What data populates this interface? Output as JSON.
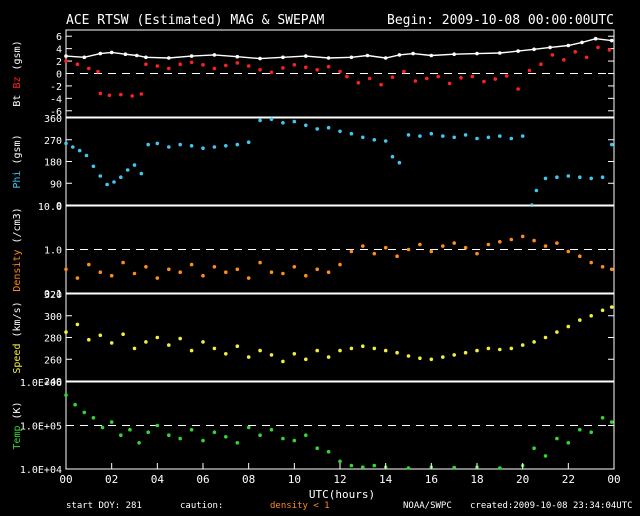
{
  "header": {
    "title": "ACE RTSW (Estimated) MAG & SWEPAM",
    "begin": "Begin: 2009-10-08 00:00:00UTC"
  },
  "footer": {
    "start_doy": "start DOY: 281",
    "caution": "caution:",
    "density_note": "density < 1",
    "agency": "NOAA/SWPC",
    "created": "created:2009-10-08 23:34:04UTC"
  },
  "colors": {
    "background": "#000000",
    "axes": "#ffffff",
    "bt": "#ffffff",
    "bz": "#ff2020",
    "phi": "#3ec8f0",
    "density": "#ff8c1a",
    "speed": "#f2ee3a",
    "temp": "#33d633"
  },
  "chart_data": {
    "type": "scatter",
    "xlabel": "UTC(hours)",
    "x_ticks": [
      "00",
      "02",
      "04",
      "06",
      "08",
      "10",
      "12",
      "14",
      "16",
      "18",
      "20",
      "22",
      "00"
    ],
    "xlim": [
      0,
      24
    ],
    "panels": [
      {
        "id": "mag",
        "ylabel_parts": [
          {
            "text": "Bt",
            "color": "#ffffff"
          },
          {
            "text": " Bz",
            "color": "#ff2020"
          },
          {
            "text": " (gsm)",
            "color": "#ffffff"
          }
        ],
        "ylim": [
          -7,
          7
        ],
        "scale": "linear",
        "y_ticks": [
          {
            "v": 6,
            "l": "6"
          },
          {
            "v": 4,
            "l": "4"
          },
          {
            "v": 2,
            "l": "2"
          },
          {
            "v": 0,
            "l": "0"
          },
          {
            "v": -2,
            "l": "-2"
          },
          {
            "v": -4,
            "l": "-4"
          },
          {
            "v": -6,
            "l": "-6"
          }
        ],
        "dashed": [
          0
        ],
        "series": [
          {
            "name": "Bt",
            "color": "#ffffff",
            "mode": "line",
            "x": [
              0.0,
              0.8,
              1.5,
              2.0,
              2.6,
              3.1,
              3.5,
              4.5,
              5.5,
              6.5,
              7.5,
              8.5,
              9.5,
              10.5,
              11.5,
              12.5,
              13.2,
              14.0,
              14.6,
              15.2,
              16.0,
              17.0,
              18.0,
              19.0,
              19.8,
              20.5,
              21.2,
              22.0,
              22.6,
              23.2,
              23.9
            ],
            "y": [
              2.8,
              2.6,
              3.2,
              3.4,
              3.1,
              2.9,
              2.6,
              2.5,
              2.8,
              3.0,
              2.7,
              2.4,
              2.6,
              2.8,
              2.5,
              2.6,
              2.9,
              2.5,
              3.0,
              3.2,
              2.9,
              3.1,
              3.2,
              3.3,
              3.6,
              3.9,
              4.2,
              4.5,
              5.0,
              5.6,
              5.3
            ]
          },
          {
            "name": "Bz",
            "color": "#ff2020",
            "mode": "scatter",
            "x": [
              0.0,
              0.5,
              1.0,
              1.4,
              1.5,
              1.9,
              2.4,
              2.9,
              3.3,
              3.5,
              4.0,
              4.5,
              5.0,
              5.5,
              6.0,
              6.5,
              7.0,
              7.5,
              8.0,
              8.5,
              9.0,
              9.5,
              10.0,
              10.5,
              11.0,
              11.5,
              12.0,
              12.3,
              12.8,
              13.3,
              13.8,
              14.3,
              14.8,
              15.3,
              15.8,
              16.3,
              16.8,
              17.3,
              17.8,
              18.3,
              18.8,
              19.3,
              19.8,
              20.3,
              20.8,
              21.3,
              21.8,
              22.3,
              22.8,
              23.3,
              23.8
            ],
            "y": [
              2.0,
              1.5,
              0.8,
              0.3,
              -3.2,
              -3.5,
              -3.4,
              -3.6,
              -3.3,
              1.5,
              1.2,
              0.8,
              1.5,
              1.8,
              1.4,
              0.8,
              1.3,
              1.7,
              1.2,
              0.6,
              0.2,
              0.9,
              1.4,
              1.0,
              0.6,
              1.1,
              0.3,
              -0.5,
              -1.5,
              -0.8,
              -1.8,
              -0.6,
              0.3,
              -1.2,
              -0.8,
              -0.5,
              -1.6,
              -0.7,
              -0.5,
              -1.3,
              -0.9,
              -0.4,
              -2.5,
              0.5,
              1.5,
              3.0,
              2.2,
              3.5,
              2.6,
              4.2,
              3.8
            ]
          }
        ]
      },
      {
        "id": "phi",
        "ylabel_parts": [
          {
            "text": "Phi",
            "color": "#3ec8f0"
          },
          {
            "text": " (gsm)",
            "color": "#ffffff"
          }
        ],
        "ylim": [
          0,
          360
        ],
        "scale": "linear",
        "y_ticks": [
          {
            "v": 360,
            "l": "360"
          },
          {
            "v": 270,
            "l": "270"
          },
          {
            "v": 180,
            "l": "180"
          },
          {
            "v": 90,
            "l": "90"
          },
          {
            "v": 0,
            "l": "0"
          }
        ],
        "dashed": [],
        "series": [
          {
            "name": "Phi",
            "color": "#3ec8f0",
            "mode": "scatter",
            "x": [
              0.0,
              0.3,
              0.6,
              0.9,
              1.2,
              1.5,
              1.8,
              2.1,
              2.4,
              2.7,
              3.0,
              3.3,
              3.6,
              4.0,
              4.5,
              5.0,
              5.5,
              6.0,
              6.5,
              7.0,
              7.5,
              8.0,
              8.5,
              9.0,
              9.5,
              10.0,
              10.5,
              11.0,
              11.5,
              12.0,
              12.5,
              13.0,
              13.5,
              14.0,
              14.3,
              14.6,
              15.0,
              15.5,
              16.0,
              16.5,
              17.0,
              17.5,
              18.0,
              18.5,
              19.0,
              19.5,
              20.0,
              20.4,
              20.6,
              21.0,
              21.5,
              22.0,
              22.5,
              23.0,
              23.5,
              23.9
            ],
            "y": [
              255,
              240,
              225,
              205,
              160,
              120,
              85,
              95,
              115,
              145,
              165,
              130,
              250,
              255,
              240,
              250,
              245,
              235,
              240,
              245,
              250,
              260,
              350,
              355,
              340,
              345,
              330,
              315,
              320,
              305,
              295,
              280,
              270,
              265,
              200,
              175,
              290,
              285,
              295,
              285,
              280,
              290,
              275,
              280,
              285,
              275,
              285,
              0,
              60,
              110,
              115,
              120,
              115,
              110,
              115,
              250
            ]
          }
        ]
      },
      {
        "id": "density",
        "ylabel_parts": [
          {
            "text": "Density",
            "color": "#ff8c1a"
          },
          {
            "text": " (/cm3)",
            "color": "#ffffff"
          }
        ],
        "ylim": [
          0.1,
          10.0
        ],
        "scale": "log",
        "y_ticks": [
          {
            "v": 10,
            "l": "10.0"
          },
          {
            "v": 1,
            "l": "1.0"
          },
          {
            "v": 0.1,
            "l": "0.1"
          }
        ],
        "dashed": [
          1.0
        ],
        "series": [
          {
            "name": "Density",
            "color": "#ff8c1a",
            "mode": "scatter",
            "x": [
              0.0,
              0.5,
              1.0,
              1.5,
              2.0,
              2.5,
              3.0,
              3.5,
              4.0,
              4.5,
              5.0,
              5.5,
              6.0,
              6.5,
              7.0,
              7.5,
              8.0,
              8.5,
              9.0,
              9.5,
              10.0,
              10.5,
              11.0,
              11.5,
              12.0,
              12.5,
              13.0,
              13.5,
              14.0,
              14.5,
              15.0,
              15.5,
              16.0,
              16.5,
              17.0,
              17.5,
              18.0,
              18.5,
              19.0,
              19.5,
              20.0,
              20.5,
              21.0,
              21.5,
              22.0,
              22.5,
              23.0,
              23.5,
              23.9
            ],
            "y": [
              0.35,
              0.22,
              0.45,
              0.3,
              0.25,
              0.5,
              0.28,
              0.4,
              0.22,
              0.35,
              0.3,
              0.45,
              0.25,
              0.4,
              0.3,
              0.35,
              0.22,
              0.5,
              0.3,
              0.28,
              0.4,
              0.25,
              0.35,
              0.3,
              0.45,
              0.9,
              1.2,
              0.8,
              1.1,
              0.7,
              1.0,
              1.3,
              0.9,
              1.2,
              1.4,
              1.1,
              0.8,
              1.3,
              1.5,
              1.7,
              2.0,
              1.6,
              1.2,
              1.4,
              0.9,
              0.7,
              0.5,
              0.4,
              0.35
            ]
          }
        ]
      },
      {
        "id": "speed",
        "ylabel_parts": [
          {
            "text": "Speed",
            "color": "#f2ee3a"
          },
          {
            "text": " (km/s)",
            "color": "#ffffff"
          }
        ],
        "ylim": [
          240,
          320
        ],
        "scale": "linear",
        "y_ticks": [
          {
            "v": 320,
            "l": "320"
          },
          {
            "v": 300,
            "l": "300"
          },
          {
            "v": 280,
            "l": "280"
          },
          {
            "v": 260,
            "l": "260"
          },
          {
            "v": 240,
            "l": "240"
          }
        ],
        "dashed": [],
        "series": [
          {
            "name": "Speed",
            "color": "#f2ee3a",
            "mode": "scatter",
            "x": [
              0.0,
              0.5,
              1.0,
              1.5,
              2.0,
              2.5,
              3.0,
              3.5,
              4.0,
              4.5,
              5.0,
              5.5,
              6.0,
              6.5,
              7.0,
              7.5,
              8.0,
              8.5,
              9.0,
              9.5,
              10.0,
              10.5,
              11.0,
              11.5,
              12.0,
              12.5,
              13.0,
              13.5,
              14.0,
              14.5,
              15.0,
              15.5,
              16.0,
              16.5,
              17.0,
              17.5,
              18.0,
              18.5,
              19.0,
              19.5,
              20.0,
              20.5,
              21.0,
              21.5,
              22.0,
              22.5,
              23.0,
              23.5,
              23.9
            ],
            "y": [
              285,
              292,
              278,
              282,
              275,
              283,
              270,
              276,
              280,
              273,
              279,
              268,
              276,
              270,
              265,
              272,
              262,
              268,
              264,
              258,
              265,
              260,
              268,
              262,
              268,
              270,
              272,
              270,
              268,
              266,
              263,
              261,
              260,
              262,
              264,
              266,
              268,
              270,
              269,
              270,
              273,
              276,
              280,
              285,
              290,
              296,
              300,
              305,
              308
            ]
          }
        ]
      },
      {
        "id": "temp",
        "ylabel_parts": [
          {
            "text": "Temp",
            "color": "#33d633"
          },
          {
            "text": " (K)",
            "color": "#ffffff"
          }
        ],
        "ylim": [
          10000,
          1000000
        ],
        "scale": "log",
        "y_ticks": [
          {
            "v": 1000000,
            "l": "1.0E+06"
          },
          {
            "v": 100000,
            "l": "1.0E+05"
          },
          {
            "v": 10000,
            "l": "1.0E+04"
          }
        ],
        "dashed": [
          100000
        ],
        "series": [
          {
            "name": "Temp",
            "color": "#33d633",
            "mode": "scatter",
            "x": [
              0.0,
              0.4,
              0.8,
              1.2,
              1.6,
              2.0,
              2.4,
              2.8,
              3.2,
              3.6,
              4.0,
              4.5,
              5.0,
              5.5,
              6.0,
              6.5,
              7.0,
              7.5,
              8.0,
              8.5,
              9.0,
              9.5,
              10.0,
              10.5,
              11.0,
              11.5,
              12.0,
              12.5,
              13.0,
              13.5,
              14.0,
              15.0,
              16.0,
              17.0,
              18.0,
              19.0,
              20.0,
              20.5,
              21.0,
              21.5,
              22.0,
              22.5,
              23.0,
              23.5,
              23.9
            ],
            "y": [
              500000,
              300000,
              200000,
              150000,
              90000,
              120000,
              60000,
              80000,
              40000,
              70000,
              100000,
              60000,
              50000,
              80000,
              45000,
              70000,
              55000,
              40000,
              90000,
              60000,
              80000,
              50000,
              45000,
              60000,
              30000,
              25000,
              15000,
              12000,
              11000,
              12000,
              11000,
              10500,
              11000,
              10800,
              11000,
              10500,
              12000,
              30000,
              20000,
              50000,
              40000,
              80000,
              70000,
              150000,
              120000
            ]
          }
        ]
      }
    ]
  }
}
